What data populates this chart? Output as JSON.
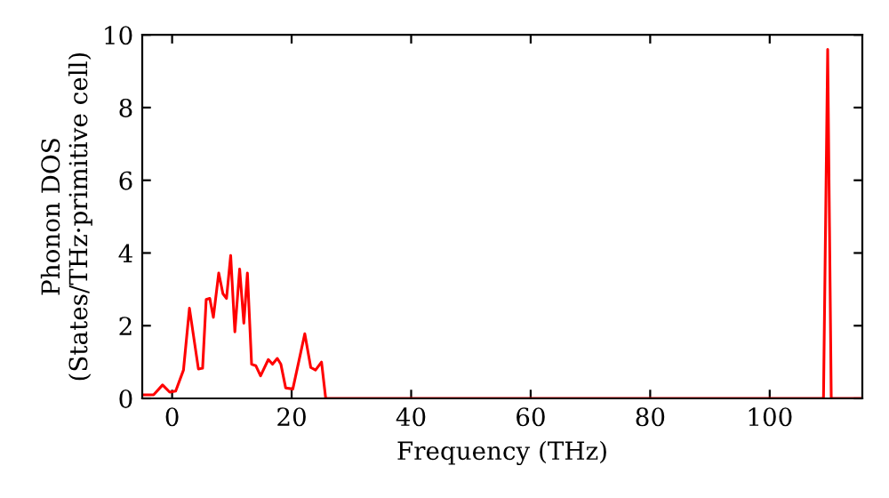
{
  "chart_data": {
    "type": "line",
    "xlabel": "Frequency (THz)",
    "ylabel": "Phonon DOS\n(States/THz·primitive cell)",
    "series": [
      {
        "color": "#ff0000",
        "x": [
          -5,
          -3.1,
          -1.6,
          -0.4,
          0.6,
          1.9,
          2.9,
          4.4,
          5.1,
          5.7,
          6.3,
          6.9,
          7.8,
          8.5,
          9.1,
          9.8,
          10.5,
          11.3,
          12.0,
          12.6,
          13.3,
          14.0,
          14.8,
          16.1,
          16.8,
          17.6,
          18.2,
          19.0,
          20.2,
          21.2,
          22.2,
          23.2,
          24.0,
          25.0,
          25.7,
          109.0,
          109.7,
          110.3,
          115.5
        ],
        "values": [
          0.1,
          0.1,
          0.37,
          0.17,
          0.2,
          0.78,
          2.48,
          0.81,
          0.83,
          2.72,
          2.75,
          2.23,
          3.45,
          2.88,
          2.75,
          3.93,
          1.83,
          3.56,
          2.07,
          3.45,
          0.94,
          0.9,
          0.62,
          1.07,
          0.94,
          1.1,
          0.94,
          0.29,
          0.26,
          1.02,
          1.78,
          0.85,
          0.78,
          1.0,
          0,
          0,
          9.6,
          0,
          0
        ]
      }
    ],
    "xlim": [
      -5,
      115.5
    ],
    "xticks": [
      0,
      20,
      40,
      60,
      80,
      100
    ],
    "ylim": [
      0,
      10
    ],
    "yticks": [
      0,
      2,
      4,
      6,
      8,
      10
    ],
    "grid": false,
    "legend": false,
    "marker": "none",
    "line_style": "solid"
  }
}
